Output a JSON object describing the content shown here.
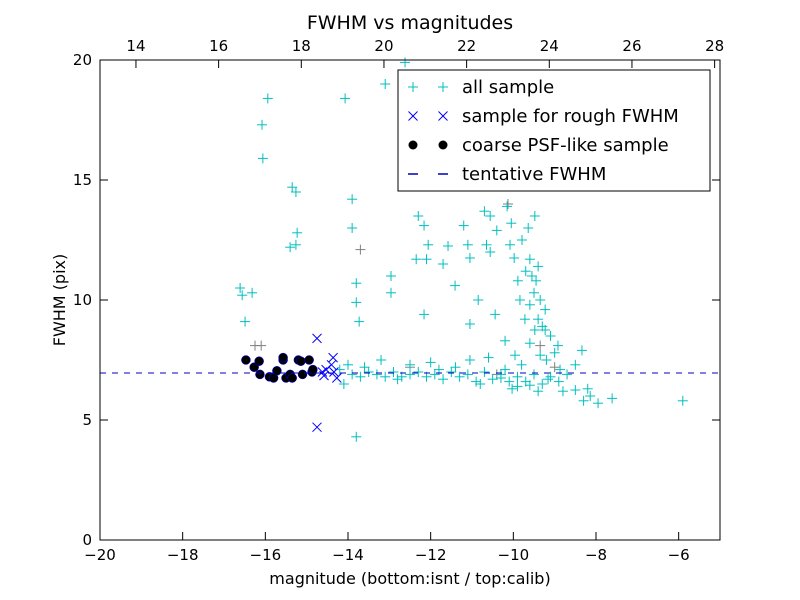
{
  "chart_data": {
    "type": "scatter",
    "title": "FWHM vs magnitudes",
    "xlabel": "magnitude (bottom:isnt / top:calib)",
    "ylabel": "FWHM (pix)",
    "xlim": [
      -20,
      -5
    ],
    "ylim": [
      0,
      20
    ],
    "top_axis_offset": 33.13,
    "xticks": [
      -20,
      -18,
      -16,
      -14,
      -12,
      -10,
      -8,
      -6
    ],
    "xtick_labels": [
      "−20",
      "−18",
      "−16",
      "−14",
      "−12",
      "−10",
      "−8",
      "−6"
    ],
    "top_xticks": [
      14,
      16,
      18,
      20,
      22,
      24,
      26,
      28
    ],
    "top_xtick_labels": [
      "14",
      "16",
      "18",
      "20",
      "22",
      "24",
      "26",
      "28"
    ],
    "yticks": [
      0,
      5,
      10,
      15,
      20
    ],
    "ytick_labels": [
      "0",
      "5",
      "10",
      "15",
      "20"
    ],
    "grid": false,
    "legend_position": "top-right",
    "tentative_fwhm": 6.96,
    "series": [
      {
        "name": "all sample",
        "marker": "+",
        "color": "#00bfbf",
        "points": [
          [
            -16.61,
            10.5
          ],
          [
            -16.56,
            10.2
          ],
          [
            -16.32,
            10.3
          ],
          [
            -16.49,
            9.1
          ],
          [
            -15.94,
            18.4
          ],
          [
            -16.08,
            17.3
          ],
          [
            -16.06,
            15.9
          ],
          [
            -15.35,
            14.7
          ],
          [
            -15.26,
            14.5
          ],
          [
            -15.23,
            12.8
          ],
          [
            -15.4,
            12.2
          ],
          [
            -15.26,
            12.3
          ],
          [
            -14.07,
            18.4
          ],
          [
            -13.9,
            14.2
          ],
          [
            -13.9,
            13.0
          ],
          [
            -13.8,
            10.7
          ],
          [
            -13.8,
            9.9
          ],
          [
            -13.73,
            9.1
          ],
          [
            -13.8,
            4.3
          ],
          [
            -13.1,
            19.0
          ],
          [
            -12.62,
            19.9
          ],
          [
            -12.96,
            11.0
          ],
          [
            -12.96,
            10.3
          ],
          [
            -12.3,
            13.5
          ],
          [
            -12.16,
            13.1
          ],
          [
            -12.06,
            12.3
          ],
          [
            -12.35,
            11.7
          ],
          [
            -12.1,
            11.7
          ],
          [
            -12.16,
            9.4
          ],
          [
            -11.7,
            11.5
          ],
          [
            -11.58,
            12.25
          ],
          [
            -11.41,
            10.6
          ],
          [
            -11.2,
            13.1
          ],
          [
            -11.1,
            12.3
          ],
          [
            -11.05,
            11.75
          ],
          [
            -11.0,
            19.4
          ],
          [
            -11.05,
            9.0
          ],
          [
            -10.85,
            10.0
          ],
          [
            -10.7,
            13.7
          ],
          [
            -10.56,
            13.5
          ],
          [
            -10.65,
            12.3
          ],
          [
            -10.56,
            12.0
          ],
          [
            -10.4,
            12.9
          ],
          [
            -10.15,
            13.9
          ],
          [
            -10.05,
            13.2
          ],
          [
            -10.08,
            12.3
          ],
          [
            -9.98,
            11.75
          ],
          [
            -9.89,
            10.8
          ],
          [
            -9.84,
            10.0
          ],
          [
            -9.79,
            12.5
          ],
          [
            -9.64,
            13.0
          ],
          [
            -9.48,
            13.5
          ],
          [
            -9.6,
            11.7
          ],
          [
            -9.45,
            10.8
          ],
          [
            -9.35,
            10.0
          ],
          [
            -9.23,
            9.6
          ],
          [
            -9.23,
            8.75
          ],
          [
            -9.1,
            8.5
          ],
          [
            -9.48,
            8.75
          ],
          [
            -9.72,
            9.2
          ],
          [
            -10.2,
            8.3
          ],
          [
            -10.44,
            9.4
          ],
          [
            -11.05,
            7.5
          ],
          [
            -9.96,
            7.7
          ],
          [
            -9.35,
            7.7
          ],
          [
            -8.92,
            8.1
          ],
          [
            -8.34,
            7.9
          ],
          [
            -8.87,
            7.1
          ],
          [
            -8.5,
            6.25
          ],
          [
            -8.14,
            6.0
          ],
          [
            -7.95,
            5.7
          ],
          [
            -7.61,
            5.9
          ],
          [
            -5.9,
            5.8
          ],
          [
            -8.5,
            7.3
          ],
          [
            -9.16,
            6.7
          ],
          [
            -9.6,
            6.45
          ],
          [
            -10.03,
            6.3
          ],
          [
            -10.3,
            6.75
          ],
          [
            -9.7,
            11.2
          ],
          [
            -9.55,
            11.0
          ],
          [
            -9.4,
            11.4
          ],
          [
            -9.5,
            10.3
          ],
          [
            -9.6,
            9.8
          ],
          [
            -9.4,
            9.2
          ],
          [
            -9.3,
            8.9
          ],
          [
            -9.6,
            8.2
          ],
          [
            -9.2,
            7.5
          ],
          [
            -9.0,
            7.8
          ],
          [
            -9.8,
            7.3
          ],
          [
            -10.6,
            7.6
          ],
          [
            -11.4,
            7.2
          ],
          [
            -12.0,
            7.4
          ],
          [
            -12.5,
            7.3
          ],
          [
            -13.2,
            7.5
          ],
          [
            -14.0,
            7.3
          ],
          [
            -13.9,
            6.9
          ],
          [
            -13.7,
            6.8
          ],
          [
            -13.5,
            7.0
          ],
          [
            -13.3,
            6.9
          ],
          [
            -13.1,
            6.8
          ],
          [
            -12.9,
            7.0
          ],
          [
            -12.7,
            6.8
          ],
          [
            -12.5,
            6.9
          ],
          [
            -12.3,
            7.0
          ],
          [
            -12.1,
            6.8
          ],
          [
            -11.9,
            6.9
          ],
          [
            -11.7,
            6.7
          ],
          [
            -11.5,
            7.0
          ],
          [
            -11.3,
            6.8
          ],
          [
            -11.1,
            6.9
          ],
          [
            -10.9,
            6.6
          ],
          [
            -10.7,
            7.0
          ],
          [
            -10.5,
            6.7
          ],
          [
            -10.3,
            6.9
          ],
          [
            -10.1,
            6.6
          ],
          [
            -9.9,
            6.8
          ],
          [
            -9.7,
            6.6
          ],
          [
            -9.5,
            6.9
          ],
          [
            -9.3,
            6.5
          ],
          [
            -9.1,
            6.8
          ],
          [
            -8.9,
            6.6
          ],
          [
            -8.7,
            6.9
          ],
          [
            -14.2,
            7.1
          ],
          [
            -14.1,
            6.5
          ],
          [
            -13.6,
            7.2
          ],
          [
            -12.8,
            6.7
          ],
          [
            -11.8,
            7.1
          ],
          [
            -10.8,
            6.5
          ],
          [
            -10.2,
            7.1
          ],
          [
            -9.9,
            6.4
          ],
          [
            -9.4,
            6.2
          ],
          [
            -8.8,
            6.2
          ],
          [
            -8.3,
            5.8
          ],
          [
            -8.2,
            6.3
          ]
        ]
      },
      {
        "name": "sample for rough FWHM",
        "marker": "x",
        "color": "#0000ff",
        "points": [
          [
            -14.75,
            8.4
          ],
          [
            -14.75,
            4.7
          ],
          [
            -14.36,
            7.6
          ],
          [
            -14.4,
            7.3
          ],
          [
            -14.34,
            7.0
          ],
          [
            -14.58,
            6.85
          ],
          [
            -14.27,
            6.75
          ],
          [
            -14.53,
            7.1
          ],
          [
            -14.62,
            7.0
          ]
        ]
      },
      {
        "name": "coarse PSF-like sample",
        "marker": "o",
        "color": "#000000",
        "points": [
          [
            -16.47,
            7.5
          ],
          [
            -16.27,
            7.2
          ],
          [
            -16.15,
            7.45
          ],
          [
            -16.13,
            6.9
          ],
          [
            -15.9,
            6.8
          ],
          [
            -15.8,
            6.75
          ],
          [
            -15.72,
            7.05
          ],
          [
            -15.57,
            7.5
          ],
          [
            -15.57,
            7.6
          ],
          [
            -15.5,
            6.75
          ],
          [
            -15.4,
            6.9
          ],
          [
            -15.2,
            7.5
          ],
          [
            -15.14,
            7.45
          ],
          [
            -15.1,
            6.9
          ],
          [
            -14.94,
            7.5
          ],
          [
            -14.87,
            7.0
          ],
          [
            -14.85,
            7.1
          ],
          [
            -15.35,
            6.75
          ]
        ]
      },
      {
        "name": "tentative FWHM",
        "marker": "--",
        "color": "#0000bf"
      }
    ],
    "extra_points_gray": [
      [
        -13.7,
        12.1
      ],
      [
        -16.25,
        8.1
      ],
      [
        -16.1,
        8.1
      ],
      [
        -10.13,
        14.0
      ],
      [
        -9.35,
        8.1
      ],
      [
        -12.5,
        7.2
      ],
      [
        -10.4,
        6.9
      ],
      [
        -9.0,
        7.2
      ]
    ]
  }
}
